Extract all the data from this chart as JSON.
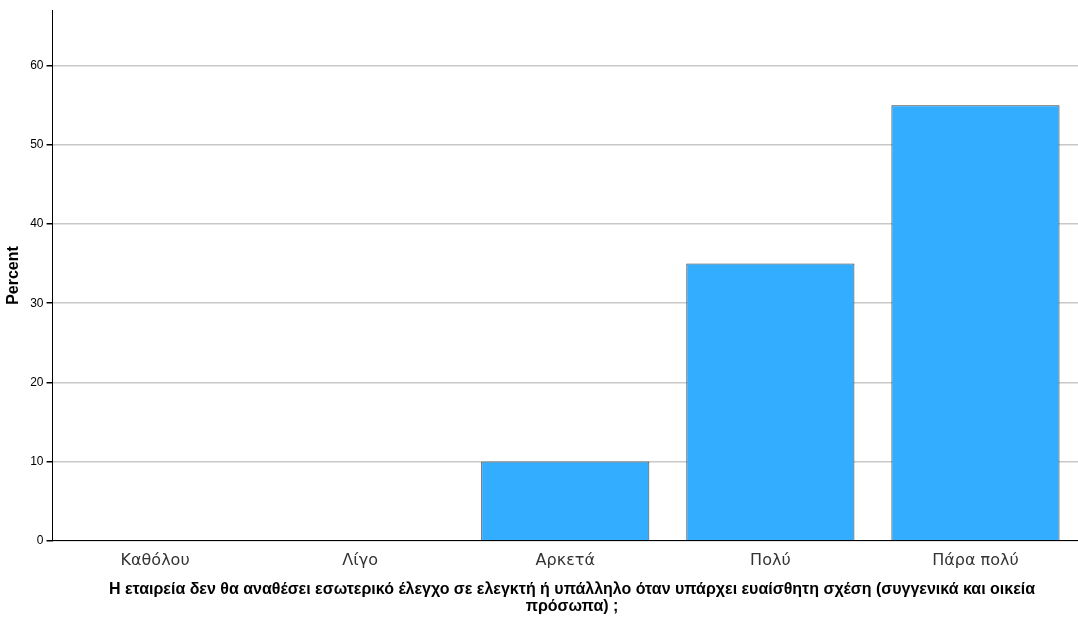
{
  "chart_data": {
    "type": "bar",
    "xlabel": "Η εταιρεία δεν θα αναθέσει εσωτερικό έλεγχο σε ελεγκτή ή υπάλληλο όταν υπάρχει ευαίσθητη σχέση (συγγενικά και οικεία πρόσωπα) ;",
    "ylabel": "Percent",
    "categories": [
      "Καθόλου",
      "Λίγο",
      "Αρκετά",
      "Πολύ",
      "Πάρα πολύ"
    ],
    "values": [
      0,
      0,
      10,
      35,
      55
    ],
    "color": "#33adff",
    "ylim": [
      0,
      67
    ],
    "yticks": [
      0,
      10,
      20,
      30,
      40,
      50,
      60
    ],
    "grid": "y"
  }
}
